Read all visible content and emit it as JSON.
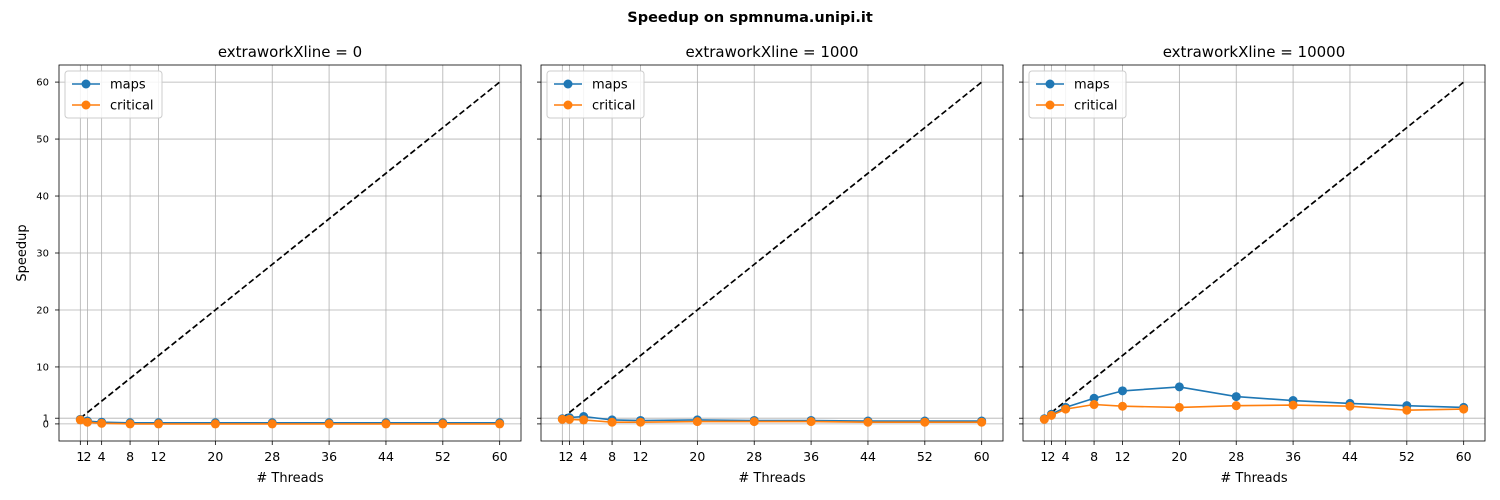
{
  "figure": {
    "title": "Speedup on spmnuma.unipi.it"
  },
  "chart_data": [
    {
      "type": "line",
      "title": "extraworkXline = 0",
      "xlabel": "# Threads",
      "ylabel": "Speedup",
      "x": [
        1,
        2,
        4,
        8,
        12,
        20,
        28,
        36,
        44,
        52,
        60
      ],
      "xticks": [
        1,
        2,
        4,
        8,
        12,
        20,
        28,
        36,
        44,
        52,
        60
      ],
      "yticks": [
        0,
        1,
        10,
        20,
        30,
        40,
        50,
        60
      ],
      "xlim": [
        -2,
        63
      ],
      "ylim": [
        -3,
        63
      ],
      "grid": true,
      "legend_position": "top-left",
      "ideal_line": {
        "x": [
          1,
          60
        ],
        "y": [
          1,
          60
        ],
        "color": "#000000",
        "style": "dashed"
      },
      "series": [
        {
          "name": "maps",
          "color": "#1f77b4",
          "values": [
            0.8,
            0.5,
            0.3,
            0.2,
            0.2,
            0.2,
            0.2,
            0.2,
            0.2,
            0.2,
            0.2
          ]
        },
        {
          "name": "critical",
          "color": "#ff7f0e",
          "values": [
            0.7,
            0.3,
            0.1,
            0.0,
            0.0,
            0.0,
            0.0,
            0.0,
            0.0,
            0.0,
            0.0
          ]
        }
      ]
    },
    {
      "type": "line",
      "title": "extraworkXline = 1000",
      "xlabel": "# Threads",
      "ylabel": "",
      "x": [
        1,
        2,
        4,
        8,
        12,
        20,
        28,
        36,
        44,
        52,
        60
      ],
      "xticks": [
        1,
        2,
        4,
        8,
        12,
        20,
        28,
        36,
        44,
        52,
        60
      ],
      "yticks": [
        0,
        1,
        10,
        20,
        30,
        40,
        50,
        60
      ],
      "xlim": [
        -2,
        63
      ],
      "ylim": [
        -3,
        63
      ],
      "grid": true,
      "legend_position": "top-left",
      "ideal_line": {
        "x": [
          1,
          60
        ],
        "y": [
          1,
          60
        ],
        "color": "#000000",
        "style": "dashed"
      },
      "series": [
        {
          "name": "maps",
          "color": "#1f77b4",
          "values": [
            0.9,
            1.1,
            1.3,
            0.7,
            0.6,
            0.7,
            0.6,
            0.6,
            0.5,
            0.5,
            0.5
          ]
        },
        {
          "name": "critical",
          "color": "#ff7f0e",
          "values": [
            0.8,
            0.8,
            0.7,
            0.3,
            0.3,
            0.4,
            0.4,
            0.4,
            0.3,
            0.3,
            0.3
          ]
        }
      ]
    },
    {
      "type": "line",
      "title": "extraworkXline = 10000",
      "xlabel": "# Threads",
      "ylabel": "",
      "x": [
        1,
        2,
        4,
        8,
        12,
        20,
        28,
        36,
        44,
        52,
        60
      ],
      "xticks": [
        1,
        2,
        4,
        8,
        12,
        20,
        28,
        36,
        44,
        52,
        60
      ],
      "yticks": [
        0,
        1,
        10,
        20,
        30,
        40,
        50,
        60
      ],
      "xlim": [
        -2,
        63
      ],
      "ylim": [
        -3,
        63
      ],
      "grid": true,
      "legend_position": "top-left",
      "ideal_line": {
        "x": [
          1,
          60
        ],
        "y": [
          1,
          60
        ],
        "color": "#000000",
        "style": "dashed"
      },
      "series": [
        {
          "name": "maps",
          "color": "#1f77b4",
          "values": [
            0.9,
            1.7,
            2.9,
            4.5,
            5.8,
            6.5,
            4.8,
            4.1,
            3.6,
            3.2,
            2.9
          ]
        },
        {
          "name": "critical",
          "color": "#ff7f0e",
          "values": [
            0.8,
            1.5,
            2.6,
            3.4,
            3.1,
            2.9,
            3.2,
            3.3,
            3.1,
            2.4,
            2.6
          ]
        }
      ]
    }
  ]
}
